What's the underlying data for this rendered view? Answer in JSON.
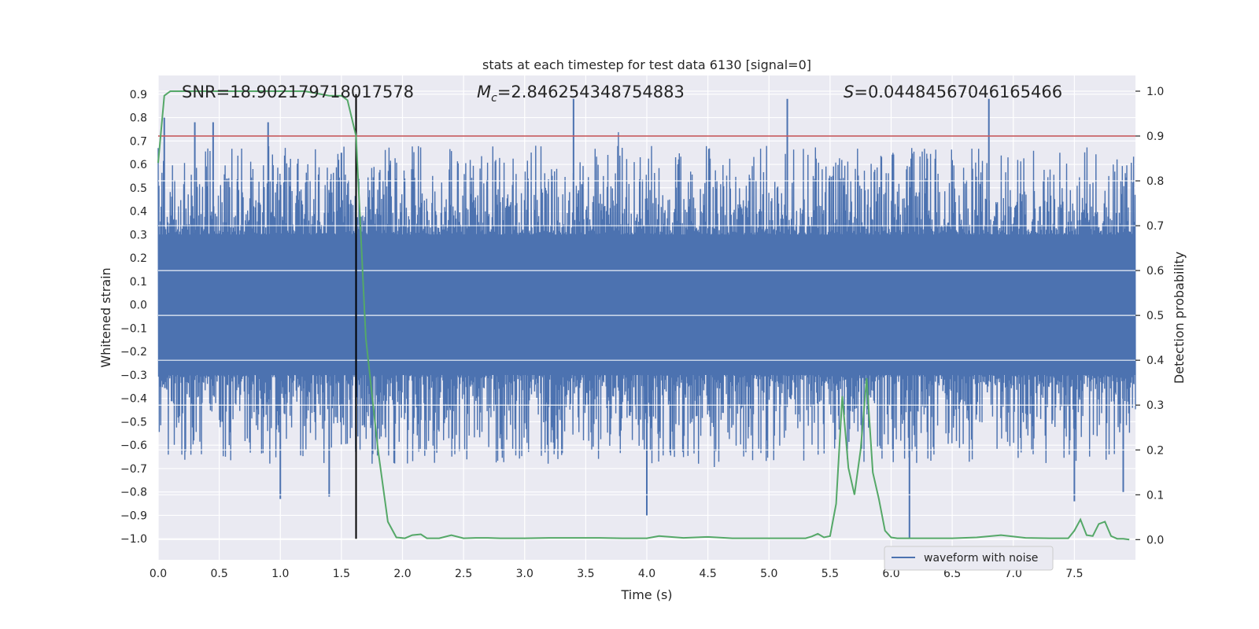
{
  "chart_data": {
    "type": "line",
    "title": "stats at each timestep for test data 6130 [signal=0]",
    "xlabel": "Time (s)",
    "ylabel_left": "Whitened strain",
    "ylabel_right": "Detection probability",
    "xlim": [
      0.0,
      8.0
    ],
    "ylim_left": [
      -1.09,
      0.98
    ],
    "ylim_right": [
      -0.045,
      1.035
    ],
    "x_ticks": [
      "0.0",
      "0.5",
      "1.0",
      "1.5",
      "2.0",
      "2.5",
      "3.0",
      "3.5",
      "4.0",
      "4.5",
      "5.0",
      "5.5",
      "6.0",
      "6.5",
      "7.0",
      "7.5"
    ],
    "y_ticks_left": [
      "0.9",
      "0.8",
      "0.7",
      "0.6",
      "0.5",
      "0.4",
      "0.3",
      "0.2",
      "0.1",
      "0.0",
      "-0.1",
      "-0.2",
      "-0.3",
      "-0.4",
      "-0.5",
      "-0.6",
      "-0.7",
      "-0.8",
      "-0.9",
      "-1.0"
    ],
    "y_ticks_right": [
      "1.0",
      "0.9",
      "0.8",
      "0.7",
      "0.6",
      "0.5",
      "0.4",
      "0.3",
      "0.2",
      "0.1",
      "0.0"
    ],
    "annotations": {
      "snr": "SNR=18.902179718017578",
      "mc_symbol": "M",
      "mc_sub": "c",
      "mc_value": "=2.846254348754883",
      "s_symbol": "S",
      "s_value": "=0.04484567046165466"
    },
    "threshold_line": {
      "y_right": 0.9,
      "color": "#c44e52"
    },
    "marker_line": {
      "x": 1.62,
      "y_left_range": [
        -1.0,
        0.9
      ],
      "color": "#000000"
    },
    "series": [
      {
        "name": "waveform with noise",
        "axis": "left",
        "color": "#4c72b0",
        "description": "dense noisy whitened strain, ~±0.3 to ±0.7 envelope",
        "peaks_positive": [
          [
            0.05,
            0.8
          ],
          [
            0.3,
            0.78
          ],
          [
            0.45,
            0.78
          ],
          [
            0.9,
            0.78
          ],
          [
            1.5,
            0.65
          ],
          [
            3.4,
            0.88
          ],
          [
            5.15,
            0.88
          ],
          [
            6.8,
            0.88
          ]
        ],
        "peaks_negative": [
          [
            1.0,
            -0.83
          ],
          [
            1.4,
            -0.82
          ],
          [
            4.0,
            -0.9
          ],
          [
            6.15,
            -1.0
          ],
          [
            7.5,
            -0.84
          ],
          [
            7.9,
            -0.8
          ]
        ]
      },
      {
        "name": "",
        "axis": "right",
        "color": "#55a868",
        "x": [
          0.0,
          0.05,
          0.1,
          0.2,
          0.4,
          0.6,
          0.8,
          1.0,
          1.2,
          1.4,
          1.5,
          1.55,
          1.62,
          1.7,
          1.8,
          1.88,
          1.95,
          2.02,
          2.08,
          2.15,
          2.2,
          2.3,
          2.4,
          2.5,
          2.6,
          2.7,
          2.8,
          3.0,
          3.2,
          3.4,
          3.6,
          3.8,
          4.0,
          4.1,
          4.3,
          4.5,
          4.7,
          4.9,
          5.1,
          5.3,
          5.35,
          5.4,
          5.45,
          5.5,
          5.55,
          5.6,
          5.65,
          5.7,
          5.75,
          5.8,
          5.85,
          5.9,
          5.95,
          6.0,
          6.05,
          6.1,
          6.3,
          6.5,
          6.7,
          6.9,
          7.1,
          7.3,
          7.45,
          7.5,
          7.55,
          7.6,
          7.65,
          7.7,
          7.75,
          7.8,
          7.85,
          7.9,
          7.95
        ],
        "y": [
          0.84,
          0.99,
          1.0,
          1.0,
          1.0,
          1.0,
          1.0,
          1.0,
          1.0,
          0.99,
          0.99,
          0.98,
          0.9,
          0.45,
          0.2,
          0.04,
          0.005,
          0.003,
          0.01,
          0.012,
          0.003,
          0.003,
          0.01,
          0.003,
          0.004,
          0.004,
          0.003,
          0.003,
          0.004,
          0.004,
          0.004,
          0.003,
          0.003,
          0.008,
          0.004,
          0.006,
          0.003,
          0.003,
          0.003,
          0.003,
          0.007,
          0.013,
          0.005,
          0.008,
          0.08,
          0.32,
          0.16,
          0.1,
          0.2,
          0.36,
          0.15,
          0.09,
          0.02,
          0.005,
          0.003,
          0.003,
          0.003,
          0.003,
          0.005,
          0.01,
          0.004,
          0.003,
          0.003,
          0.02,
          0.045,
          0.01,
          0.008,
          0.035,
          0.04,
          0.008,
          0.002,
          0.002,
          0.0
        ]
      }
    ],
    "legend": {
      "placement": "lower-right",
      "entries": [
        "waveform with noise"
      ]
    },
    "grid": true,
    "colors": {
      "background": "#eaeaf2",
      "grid": "#ffffff",
      "waveform": "#4c72b0",
      "probability": "#55a868",
      "threshold": "#c44e52",
      "marker": "#000000"
    }
  }
}
